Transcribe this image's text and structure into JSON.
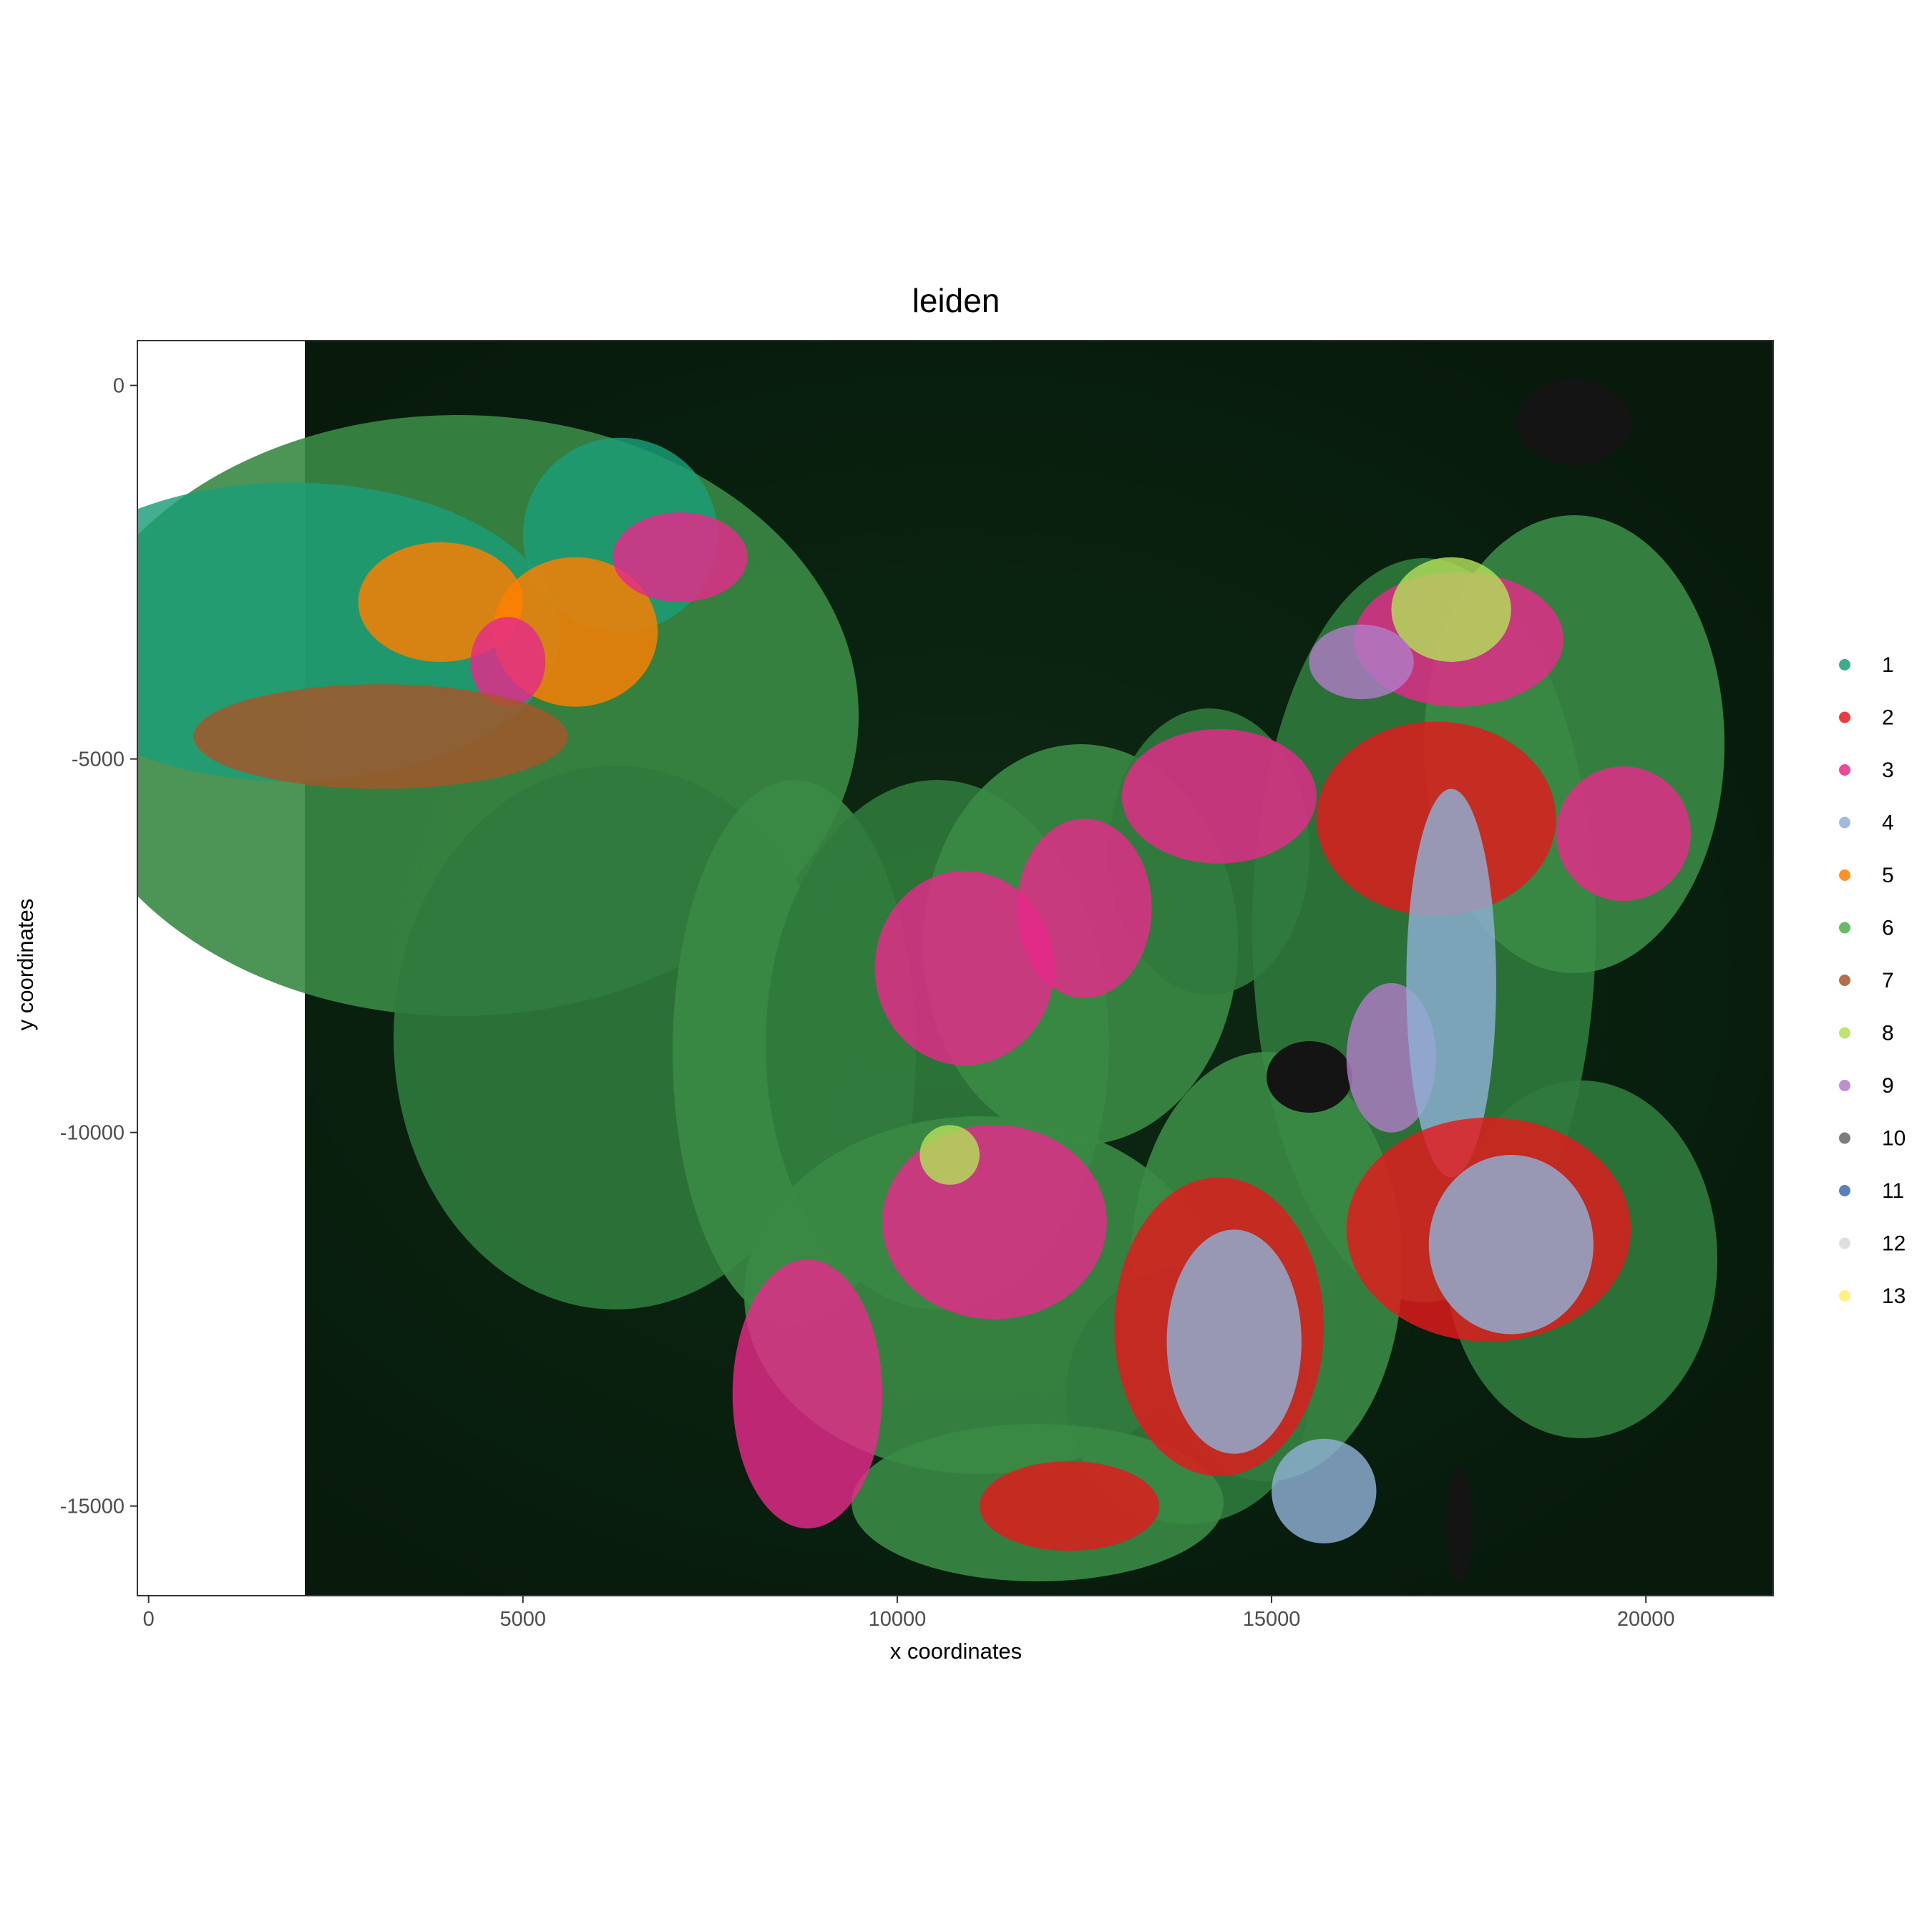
{
  "chart_data": {
    "type": "scatter",
    "title": "leiden",
    "xlabel": "x coordinates",
    "ylabel": "y coordinates",
    "xlim": [
      -150,
      21700
    ],
    "ylim": [
      -16200,
      600
    ],
    "x_ticks": [
      {
        "value": 0,
        "label": "0"
      },
      {
        "value": 5000,
        "label": "5000"
      },
      {
        "value": 10000,
        "label": "10000"
      },
      {
        "value": 15000,
        "label": "15000"
      },
      {
        "value": 20000,
        "label": "20000"
      }
    ],
    "y_ticks": [
      {
        "value": 0,
        "label": "0"
      },
      {
        "value": -5000,
        "label": "-5000"
      },
      {
        "value": -10000,
        "label": "-10000"
      },
      {
        "value": -15000,
        "label": "-15000"
      }
    ],
    "grid": false,
    "legend_position": "right",
    "background": "fluorescence tissue image (dark green)",
    "legend": [
      {
        "label": "1",
        "color": "#1b9e77"
      },
      {
        "label": "2",
        "color": "#e41a1c"
      },
      {
        "label": "3",
        "color": "#e7298a"
      },
      {
        "label": "4",
        "color": "#8fb0d4"
      },
      {
        "label": "5",
        "color": "#ff7f00"
      },
      {
        "label": "6",
        "color": "#4daf4a"
      },
      {
        "label": "7",
        "color": "#a65628"
      },
      {
        "label": "8",
        "color": "#b2df5a"
      },
      {
        "label": "9",
        "color": "#b07cc6"
      },
      {
        "label": "10",
        "color": "#666666"
      },
      {
        "label": "11",
        "color": "#386cb0"
      },
      {
        "label": "12",
        "color": "#d9d9d9"
      },
      {
        "label": "13",
        "color": "#ffed6f"
      }
    ],
    "regions": [
      {
        "cluster": "1",
        "x": 1900,
        "y": -3300,
        "rx": 3600,
        "ry": 2000
      },
      {
        "cluster": "1",
        "x": 6300,
        "y": -2000,
        "rx": 1300,
        "ry": 1300
      },
      {
        "cluster": "5",
        "x": 3900,
        "y": -2900,
        "rx": 1100,
        "ry": 800
      },
      {
        "cluster": "5",
        "x": 5700,
        "y": -3300,
        "rx": 1100,
        "ry": 1000
      },
      {
        "cluster": "3",
        "x": 7100,
        "y": -2300,
        "rx": 900,
        "ry": 600
      },
      {
        "cluster": "3",
        "x": 4800,
        "y": -3700,
        "rx": 500,
        "ry": 600
      },
      {
        "cluster": "7",
        "x": 3100,
        "y": -4700,
        "rx": 2500,
        "ry": 700
      },
      {
        "cluster": "3",
        "x": 14300,
        "y": -5500,
        "rx": 1300,
        "ry": 900
      },
      {
        "cluster": "3",
        "x": 10900,
        "y": -7800,
        "rx": 1200,
        "ry": 1300
      },
      {
        "cluster": "3",
        "x": 12500,
        "y": -7000,
        "rx": 900,
        "ry": 1200
      },
      {
        "cluster": "3",
        "x": 11300,
        "y": -11200,
        "rx": 1500,
        "ry": 1300
      },
      {
        "cluster": "3",
        "x": 8800,
        "y": -13500,
        "rx": 1000,
        "ry": 1800
      },
      {
        "cluster": "3",
        "x": 17500,
        "y": -3400,
        "rx": 1400,
        "ry": 900
      },
      {
        "cluster": "3",
        "x": 19700,
        "y": -6000,
        "rx": 900,
        "ry": 900
      },
      {
        "cluster": "8",
        "x": 17400,
        "y": -3000,
        "rx": 800,
        "ry": 700
      },
      {
        "cluster": "8",
        "x": 10700,
        "y": -10300,
        "rx": 400,
        "ry": 400
      },
      {
        "cluster": "9",
        "x": 16200,
        "y": -3700,
        "rx": 700,
        "ry": 500
      },
      {
        "cluster": "9",
        "x": 16600,
        "y": -9000,
        "rx": 600,
        "ry": 1000
      },
      {
        "cluster": "2",
        "x": 17200,
        "y": -5800,
        "rx": 1600,
        "ry": 1300
      },
      {
        "cluster": "4",
        "x": 17400,
        "y": -8000,
        "rx": 600,
        "ry": 2600
      },
      {
        "cluster": "2",
        "x": 17900,
        "y": -11300,
        "rx": 1900,
        "ry": 1500
      },
      {
        "cluster": "4",
        "x": 18200,
        "y": -11500,
        "rx": 1100,
        "ry": 1200
      },
      {
        "cluster": "2",
        "x": 14300,
        "y": -12600,
        "rx": 1400,
        "ry": 2000
      },
      {
        "cluster": "4",
        "x": 14500,
        "y": -12800,
        "rx": 900,
        "ry": 1500
      },
      {
        "cluster": "2",
        "x": 12300,
        "y": -15000,
        "rx": 1200,
        "ry": 600
      },
      {
        "cluster": "4",
        "x": 15700,
        "y": -14800,
        "rx": 700,
        "ry": 700
      }
    ]
  }
}
